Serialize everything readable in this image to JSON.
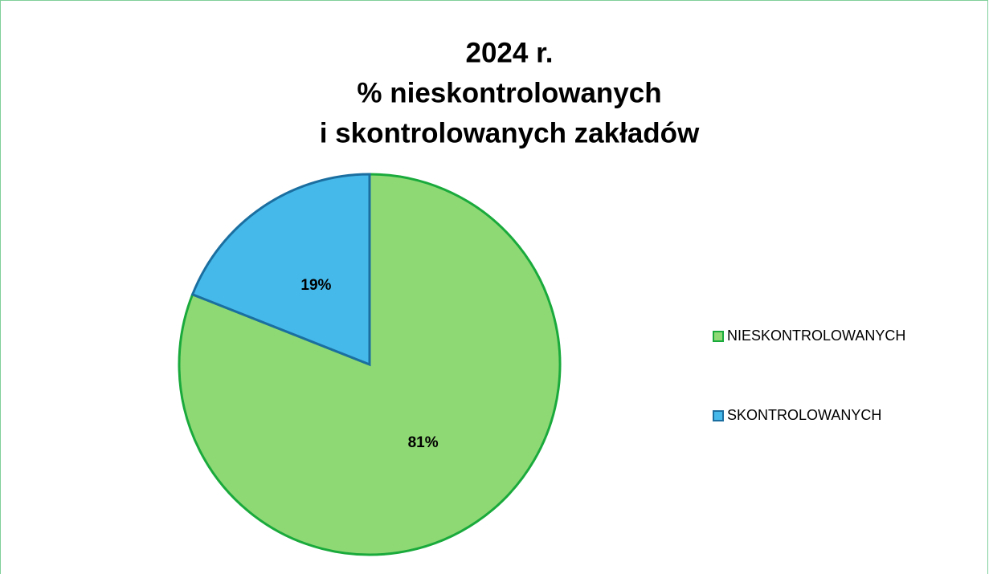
{
  "chart_data": {
    "type": "pie",
    "title": [
      "2024 r.",
      "%  nieskontrolowanych",
      "i skontrolowanych zakładów"
    ],
    "categories": [
      "NIESKONTROLOWANYCH",
      "SKONTROLOWANYCH"
    ],
    "values": [
      81,
      19
    ],
    "value_labels": [
      "81%",
      "19%"
    ],
    "colors": [
      "#8fd975",
      "#45b9ea"
    ],
    "edge_colors": [
      "#1aaa3c",
      "#1b6fa0"
    ],
    "legend": "right"
  }
}
